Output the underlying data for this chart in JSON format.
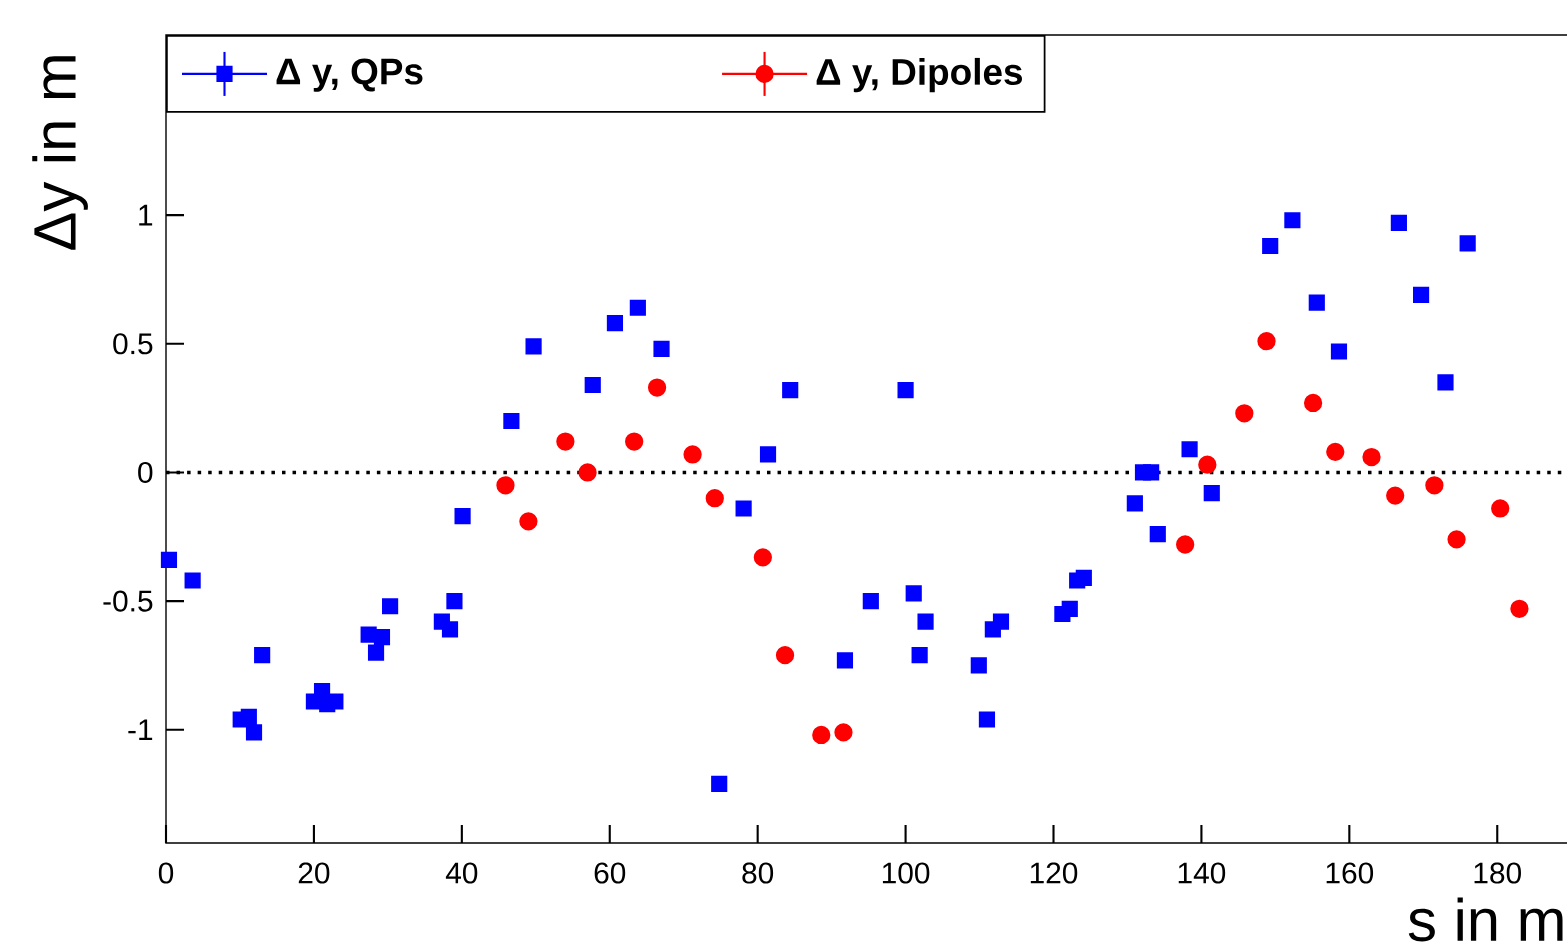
{
  "chart_data": {
    "type": "scatter",
    "xlabel": "s in m",
    "ylabel": "Δy in m",
    "xlim": [
      0,
      192
    ],
    "ylim": [
      -1.44,
      1.7
    ],
    "xticks": [
      0,
      20,
      40,
      60,
      80,
      100,
      120,
      140,
      160,
      180
    ],
    "yticks": [
      -1,
      -0.5,
      0,
      0.5,
      1
    ],
    "legend": "top",
    "grid": false,
    "ref_lines": [
      {
        "axis": "y",
        "value": 0,
        "color": "#000000",
        "line_style": "dotted"
      }
    ],
    "series": [
      {
        "name": "Δ y, QPs",
        "color": "#0000ff",
        "marker": "square",
        "x": [
          0.4,
          3.6,
          10.1,
          11.2,
          11.9,
          13.0,
          20.0,
          21.1,
          21.8,
          22.9,
          27.4,
          28.4,
          29.2,
          30.3,
          37.3,
          38.4,
          39.0,
          40.1,
          46.7,
          49.7,
          57.7,
          60.7,
          63.8,
          67.0,
          74.8,
          78.1,
          81.4,
          84.4,
          91.8,
          95.3,
          100.0,
          101.1,
          101.9,
          102.7,
          109.9,
          111.0,
          111.8,
          112.9,
          121.2,
          122.2,
          123.2,
          124.1,
          131.0,
          132.1,
          133.2,
          134.1,
          138.4,
          141.4,
          149.3,
          152.3,
          155.6,
          158.6,
          166.7,
          169.7,
          173.0,
          176.0
        ],
        "values": [
          -0.34,
          -0.42,
          -0.96,
          -0.95,
          -1.01,
          -0.71,
          -0.89,
          -0.85,
          -0.9,
          -0.89,
          -0.63,
          -0.7,
          -0.64,
          -0.52,
          -0.58,
          -0.61,
          -0.5,
          -0.17,
          0.2,
          0.49,
          0.34,
          0.58,
          0.64,
          0.48,
          -1.21,
          -0.14,
          0.07,
          0.32,
          -0.73,
          -0.5,
          0.32,
          -0.47,
          -0.71,
          -0.58,
          -0.75,
          -0.96,
          -0.61,
          -0.58,
          -0.55,
          -0.53,
          -0.42,
          -0.41,
          -0.12,
          0.0,
          0.0,
          -0.24,
          0.09,
          -0.08,
          0.88,
          0.98,
          0.66,
          0.47,
          0.97,
          0.69,
          0.35,
          0.89
        ]
      },
      {
        "name": "Δ y, Dipoles",
        "color": "#ff0000",
        "marker": "circle",
        "x": [
          45.9,
          49.0,
          54.0,
          57.0,
          63.3,
          66.4,
          71.2,
          74.2,
          80.7,
          83.7,
          88.6,
          91.6,
          137.8,
          140.8,
          145.8,
          148.8,
          155.1,
          158.1,
          163.0,
          166.2,
          171.5,
          174.5,
          180.4,
          183.0
        ],
        "values": [
          -0.05,
          -0.19,
          0.12,
          0.0,
          0.12,
          0.33,
          0.07,
          -0.1,
          -0.33,
          -0.71,
          -1.02,
          -1.01,
          -0.28,
          0.03,
          0.23,
          0.51,
          0.27,
          0.08,
          0.06,
          -0.09,
          -0.05,
          -0.26,
          -0.14,
          -0.53
        ]
      }
    ]
  }
}
